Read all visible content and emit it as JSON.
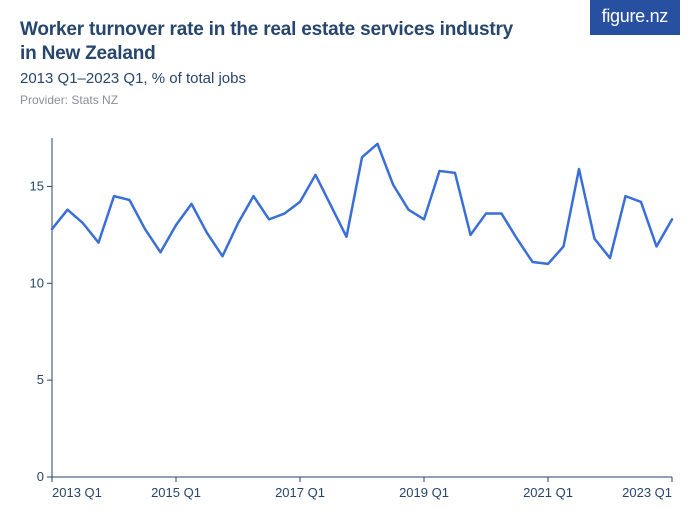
{
  "logo": {
    "text_a": "figure",
    "text_b": ".nz"
  },
  "header": {
    "title": "Worker turnover rate in the real estate services industry in New Zealand",
    "subtitle": "2013 Q1–2023 Q1, % of total jobs",
    "provider": "Provider: Stats NZ"
  },
  "chart": {
    "type": "line",
    "line_color": "#3a6fd8",
    "line_width": 2.5,
    "axis_color": "#26466d",
    "axis_width": 1,
    "tick_color": "#26466d",
    "background_color": "#ffffff",
    "title_color": "#26466d",
    "title_fontsize": 19,
    "subtitle_fontsize": 15,
    "provider_color": "#8a8f99",
    "provider_fontsize": 12,
    "axis_label_fontsize": 13,
    "x": {
      "min": 0,
      "max": 40,
      "ticks": [
        0,
        8,
        16,
        24,
        32,
        40
      ],
      "tick_labels": [
        "2013 Q1",
        "2015 Q1",
        "2017 Q1",
        "2019 Q1",
        "2021 Q1",
        "2023 Q1"
      ]
    },
    "y": {
      "min": 0,
      "max": 17.5,
      "ticks": [
        0,
        5,
        10,
        15
      ],
      "tick_labels": [
        "0",
        "5",
        "10",
        "15"
      ]
    },
    "series": {
      "values": [
        12.8,
        13.8,
        13.1,
        12.1,
        14.5,
        14.3,
        12.8,
        11.6,
        13.0,
        14.1,
        12.6,
        11.4,
        13.1,
        14.5,
        13.3,
        13.6,
        14.2,
        15.6,
        14.0,
        12.4,
        16.5,
        17.2,
        15.1,
        13.8,
        13.3,
        15.8,
        15.7,
        12.5,
        13.6,
        13.6,
        12.3,
        11.1,
        11.0,
        11.9,
        15.9,
        12.3,
        11.3,
        14.5,
        14.2,
        11.9,
        13.3
      ]
    }
  }
}
